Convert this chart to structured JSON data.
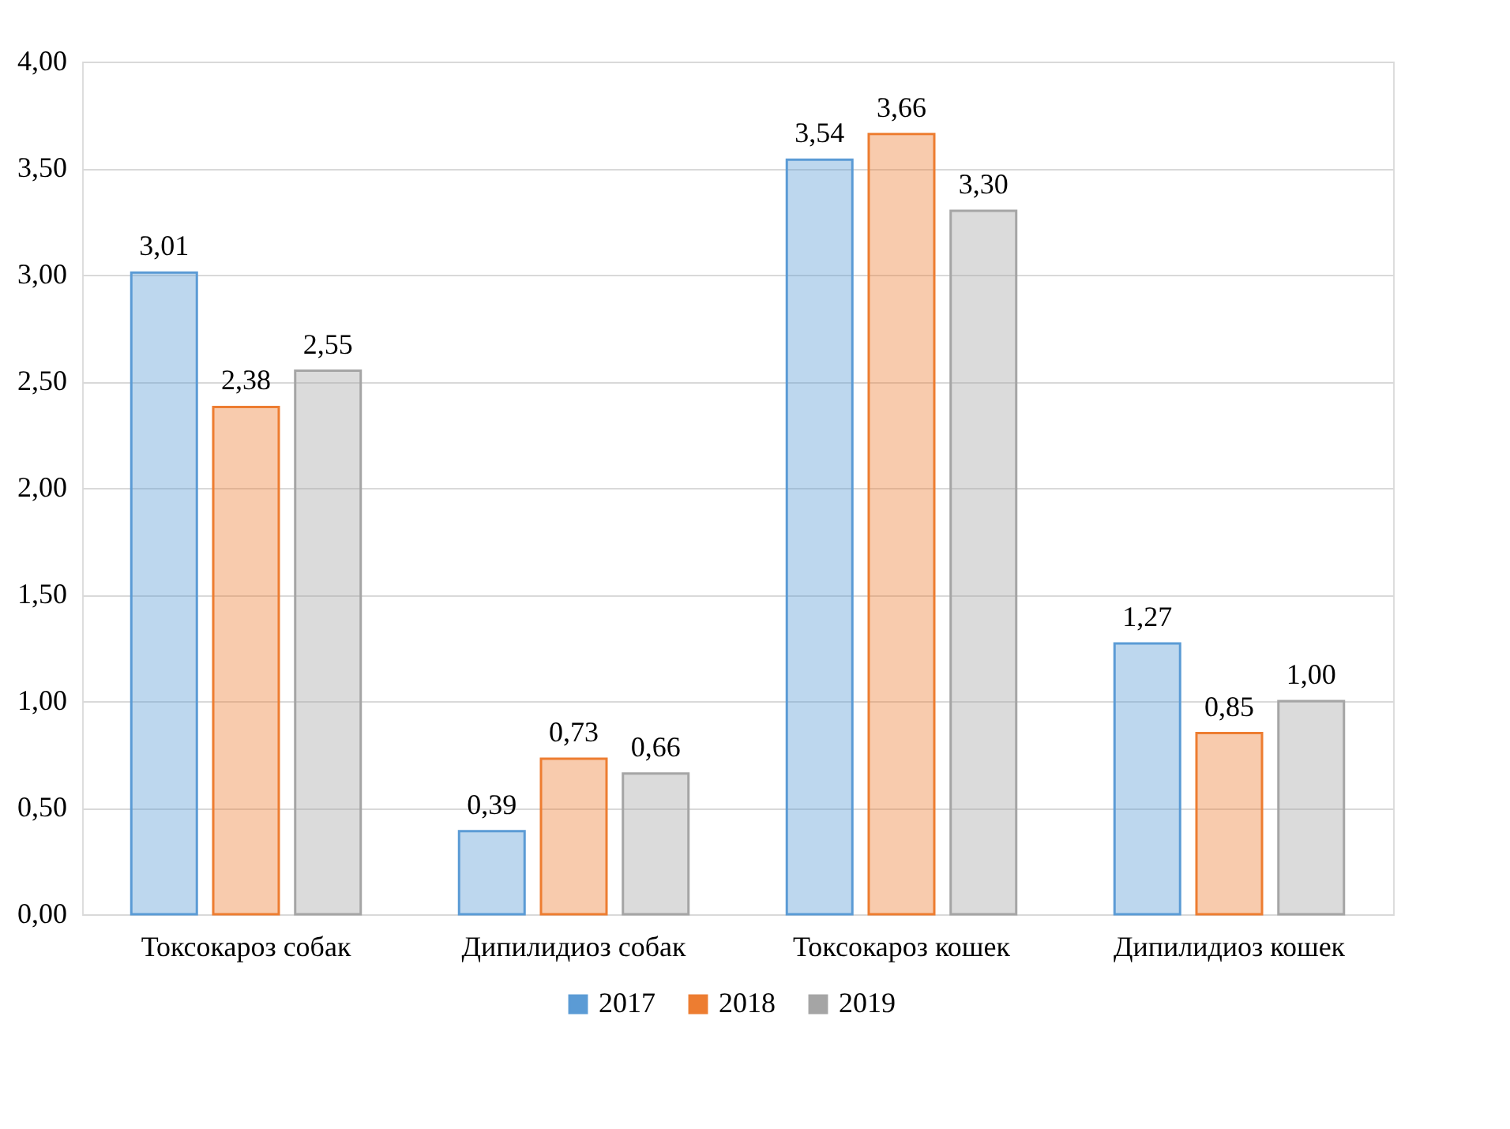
{
  "chart_data": {
    "type": "bar",
    "categories": [
      "Токсокароз собак",
      "Дипилидиоз собак",
      "Токсокароз кошек",
      "Дипилидиоз кошек"
    ],
    "series": [
      {
        "name": "2017",
        "color": "#5b9bd5",
        "values": [
          3.01,
          0.39,
          3.54,
          1.27
        ],
        "value_labels": [
          "3,01",
          "0,39",
          "3,54",
          "1,27"
        ]
      },
      {
        "name": "2018",
        "color": "#ed7d31",
        "values": [
          2.38,
          0.73,
          3.66,
          0.85
        ],
        "value_labels": [
          "2,38",
          "0,73",
          "3,66",
          "0,85"
        ]
      },
      {
        "name": "2019",
        "color": "#a5a5a5",
        "values": [
          2.55,
          0.66,
          3.3,
          1.0
        ],
        "value_labels": [
          "2,55",
          "0,66",
          "3,30",
          "1,00"
        ]
      }
    ],
    "ylim": [
      0,
      4
    ],
    "yticks": [
      {
        "value": 0,
        "label": "0,00"
      },
      {
        "value": 0.5,
        "label": "0,50"
      },
      {
        "value": 1,
        "label": "1,00"
      },
      {
        "value": 1.5,
        "label": "1,50"
      },
      {
        "value": 2,
        "label": "2,00"
      },
      {
        "value": 2.5,
        "label": "2,50"
      },
      {
        "value": 3,
        "label": "3,00"
      },
      {
        "value": 3.5,
        "label": "3,50"
      },
      {
        "value": 4,
        "label": "4,00"
      }
    ],
    "grid": "y",
    "legend": "bottom"
  }
}
